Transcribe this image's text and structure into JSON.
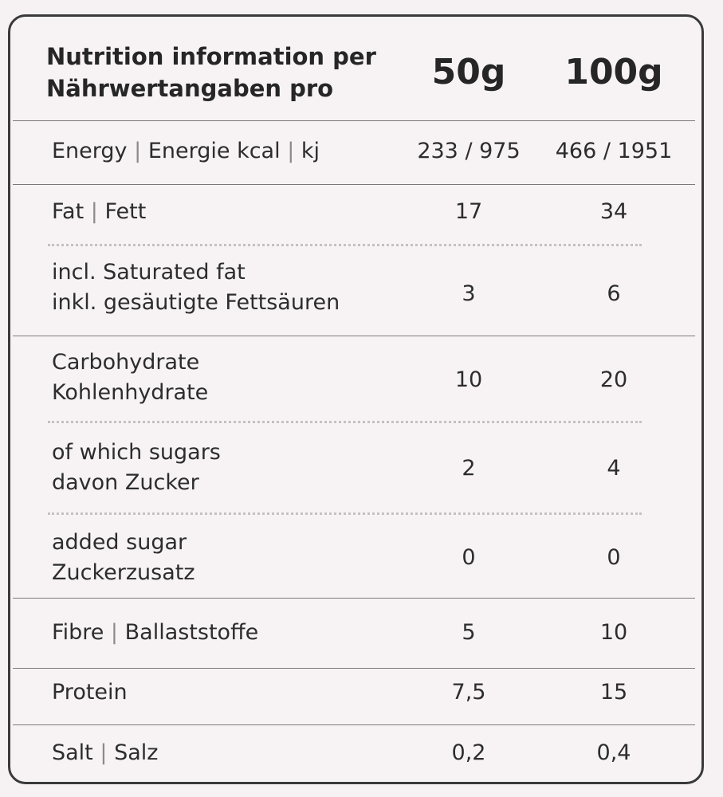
{
  "header": {
    "title_line1": "Nutrition information per",
    "title_line2": "Nährwertangaben pro",
    "col1": "50g",
    "col2": "100g"
  },
  "rows": {
    "energy": {
      "a": "Energy",
      "b": "Energie kcal",
      "c": "kj",
      "v1": "233 / 975",
      "v2": "466 / 1951"
    },
    "fat": {
      "a": "Fat",
      "b": "Fett",
      "v1": "17",
      "v2": "34"
    },
    "saturated": {
      "l1": "incl. Saturated fat",
      "l2": "inkl. gesäutigte Fettsäuren",
      "v1": "3",
      "v2": "6"
    },
    "carbs": {
      "l1": "Carbohydrate",
      "l2": "Kohlenhydrate",
      "v1": "10",
      "v2": "20"
    },
    "sugars": {
      "l1": "of which sugars",
      "l2": "davon Zucker",
      "v1": "2",
      "v2": "4"
    },
    "added": {
      "l1": "added sugar",
      "l2": "Zuckerzusatz",
      "v1": "0",
      "v2": "0"
    },
    "fibre": {
      "a": "Fibre",
      "b": "Ballaststoffe",
      "v1": "5",
      "v2": "10"
    },
    "protein": {
      "a": "Protein",
      "v1": "7,5",
      "v2": "15"
    },
    "salt": {
      "a": "Salt",
      "b": "Salz",
      "v1": "0,2",
      "v2": "0,4"
    }
  },
  "separator": "|"
}
